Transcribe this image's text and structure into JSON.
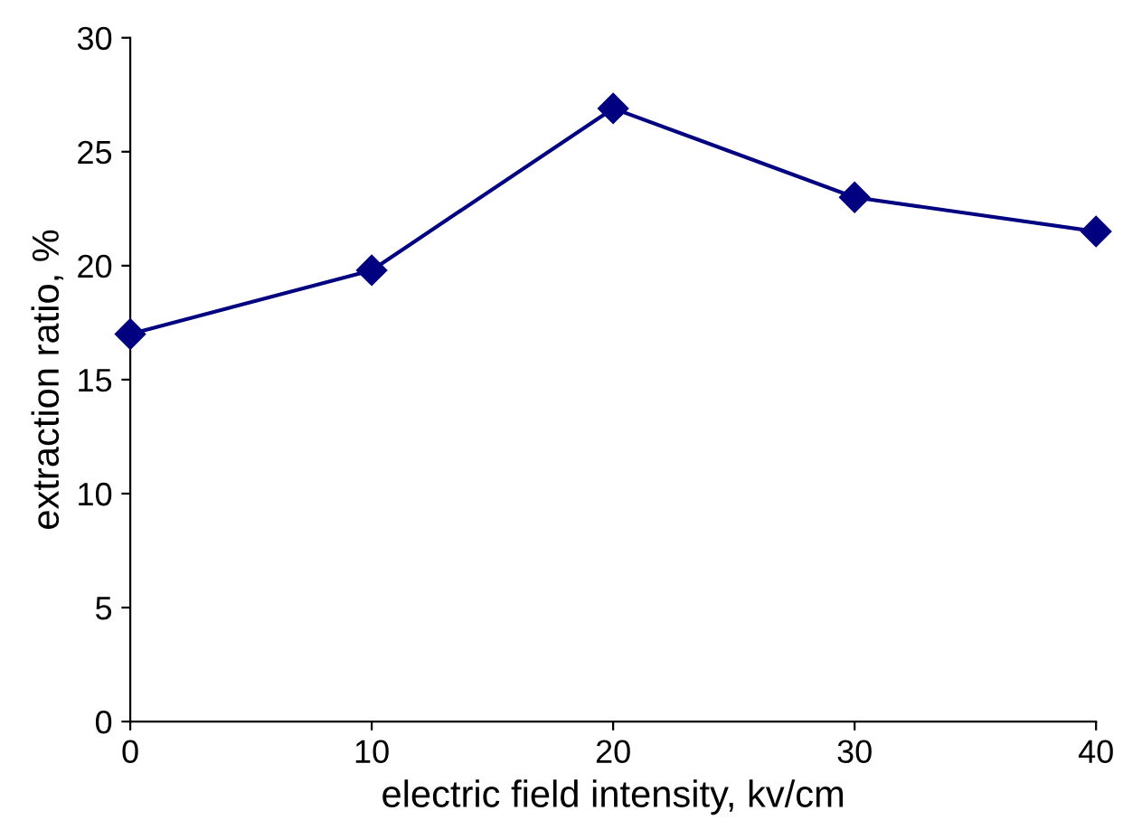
{
  "chart_data": {
    "type": "line",
    "xlabel": "electric field intensity, kv/cm",
    "ylabel": "extraction ratio, %",
    "x": [
      0,
      10,
      20,
      30,
      40
    ],
    "series": [
      {
        "color": "#000080",
        "values": [
          17.0,
          19.8,
          26.9,
          23.0,
          21.5
        ]
      }
    ],
    "xlim": [
      0,
      40
    ],
    "xticks": [
      0,
      10,
      20,
      30,
      40
    ],
    "ylim": [
      0,
      30
    ],
    "yticks": [
      0,
      5,
      10,
      15,
      20,
      25,
      30
    ],
    "marker": "diamond",
    "line_style": "solid",
    "grid": false,
    "legend": false
  }
}
